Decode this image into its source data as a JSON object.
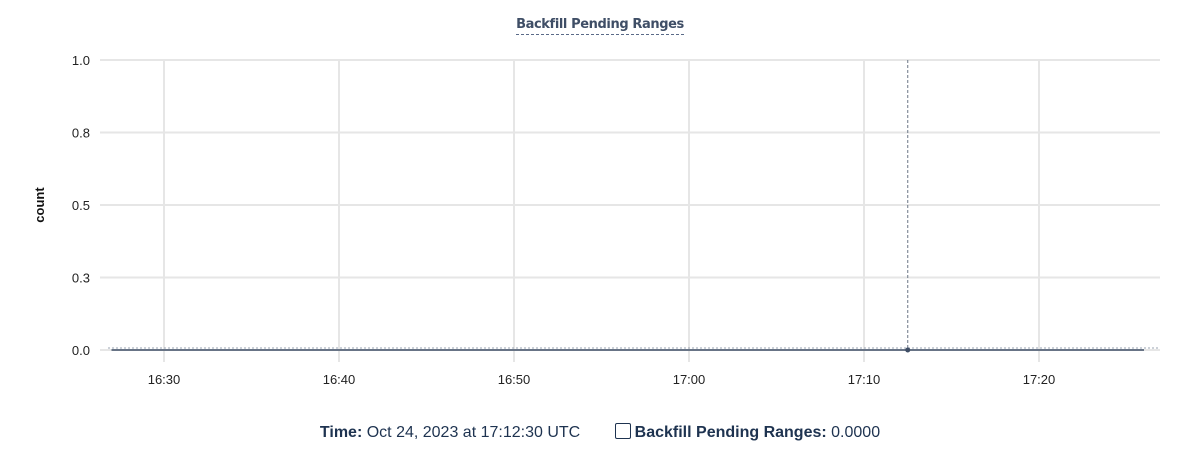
{
  "chart_data": {
    "type": "line",
    "title": "Backfill Pending Ranges",
    "ylabel": "count",
    "xlabel": "",
    "ylim": [
      0,
      1
    ],
    "yticks": [
      {
        "value": 0,
        "label": "0.0"
      },
      {
        "value": 0.25,
        "label": "0.3"
      },
      {
        "value": 0.5,
        "label": "0.5"
      },
      {
        "value": 0.75,
        "label": "0.8"
      },
      {
        "value": 1,
        "label": "1.0"
      }
    ],
    "xlim": [
      "16:26:48",
      "17:26:00"
    ],
    "xticks": [
      "16:30",
      "16:40",
      "16:50",
      "17:00",
      "17:10",
      "17:20"
    ],
    "grid": true,
    "series": [
      {
        "name": "Backfill Pending Ranges",
        "color": "#3f4e66",
        "x": [
          "16:27:00",
          "17:12:30",
          "17:26:00"
        ],
        "values": [
          0,
          0,
          0
        ]
      }
    ],
    "hover": {
      "x": "17:12:30",
      "value": 0
    }
  },
  "legend": {
    "time_label": "Time:",
    "time_value": "Oct 24, 2023 at 17:12:30 UTC",
    "series_label": "Backfill Pending Ranges:",
    "series_value": "0.0000"
  }
}
